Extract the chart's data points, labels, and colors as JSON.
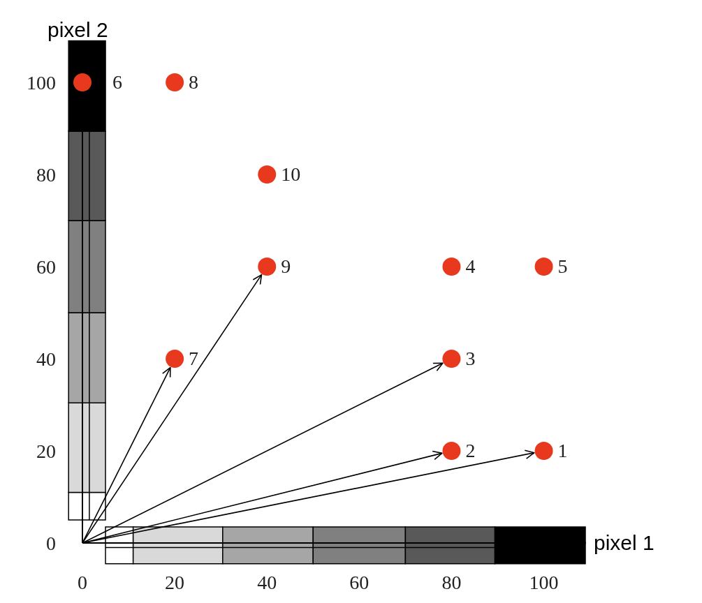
{
  "chart_data": {
    "type": "scatter",
    "xlabel": "pixel 1",
    "ylabel": "pixel 2",
    "xlim": [
      0,
      109
    ],
    "ylim": [
      0,
      100
    ],
    "xticks": [
      0,
      20,
      40,
      60,
      80,
      100
    ],
    "yticks": [
      0,
      20,
      40,
      60,
      80,
      100
    ],
    "grid": false,
    "marker": "circle",
    "series": [
      {
        "color": "#e8391e",
        "x": [
          100,
          80,
          80,
          80,
          100,
          0,
          20,
          20,
          40,
          40
        ],
        "values": [
          20,
          20,
          40,
          60,
          60,
          100,
          40,
          100,
          60,
          80
        ]
      }
    ],
    "annotations": [
      {
        "text": "1",
        "x": 100,
        "y": 20
      },
      {
        "text": "2",
        "x": 80,
        "y": 20
      },
      {
        "text": "3",
        "x": 80,
        "y": 40
      },
      {
        "text": "4",
        "x": 80,
        "y": 60
      },
      {
        "text": "5",
        "x": 100,
        "y": 60
      },
      {
        "text": "6",
        "x": 0,
        "y": 100
      },
      {
        "text": "7",
        "x": 20,
        "y": 40
      },
      {
        "text": "8",
        "x": 20,
        "y": 100
      },
      {
        "text": "9",
        "x": 40,
        "y": 60
      },
      {
        "text": "10",
        "x": 40,
        "y": 80
      }
    ]
  }
}
